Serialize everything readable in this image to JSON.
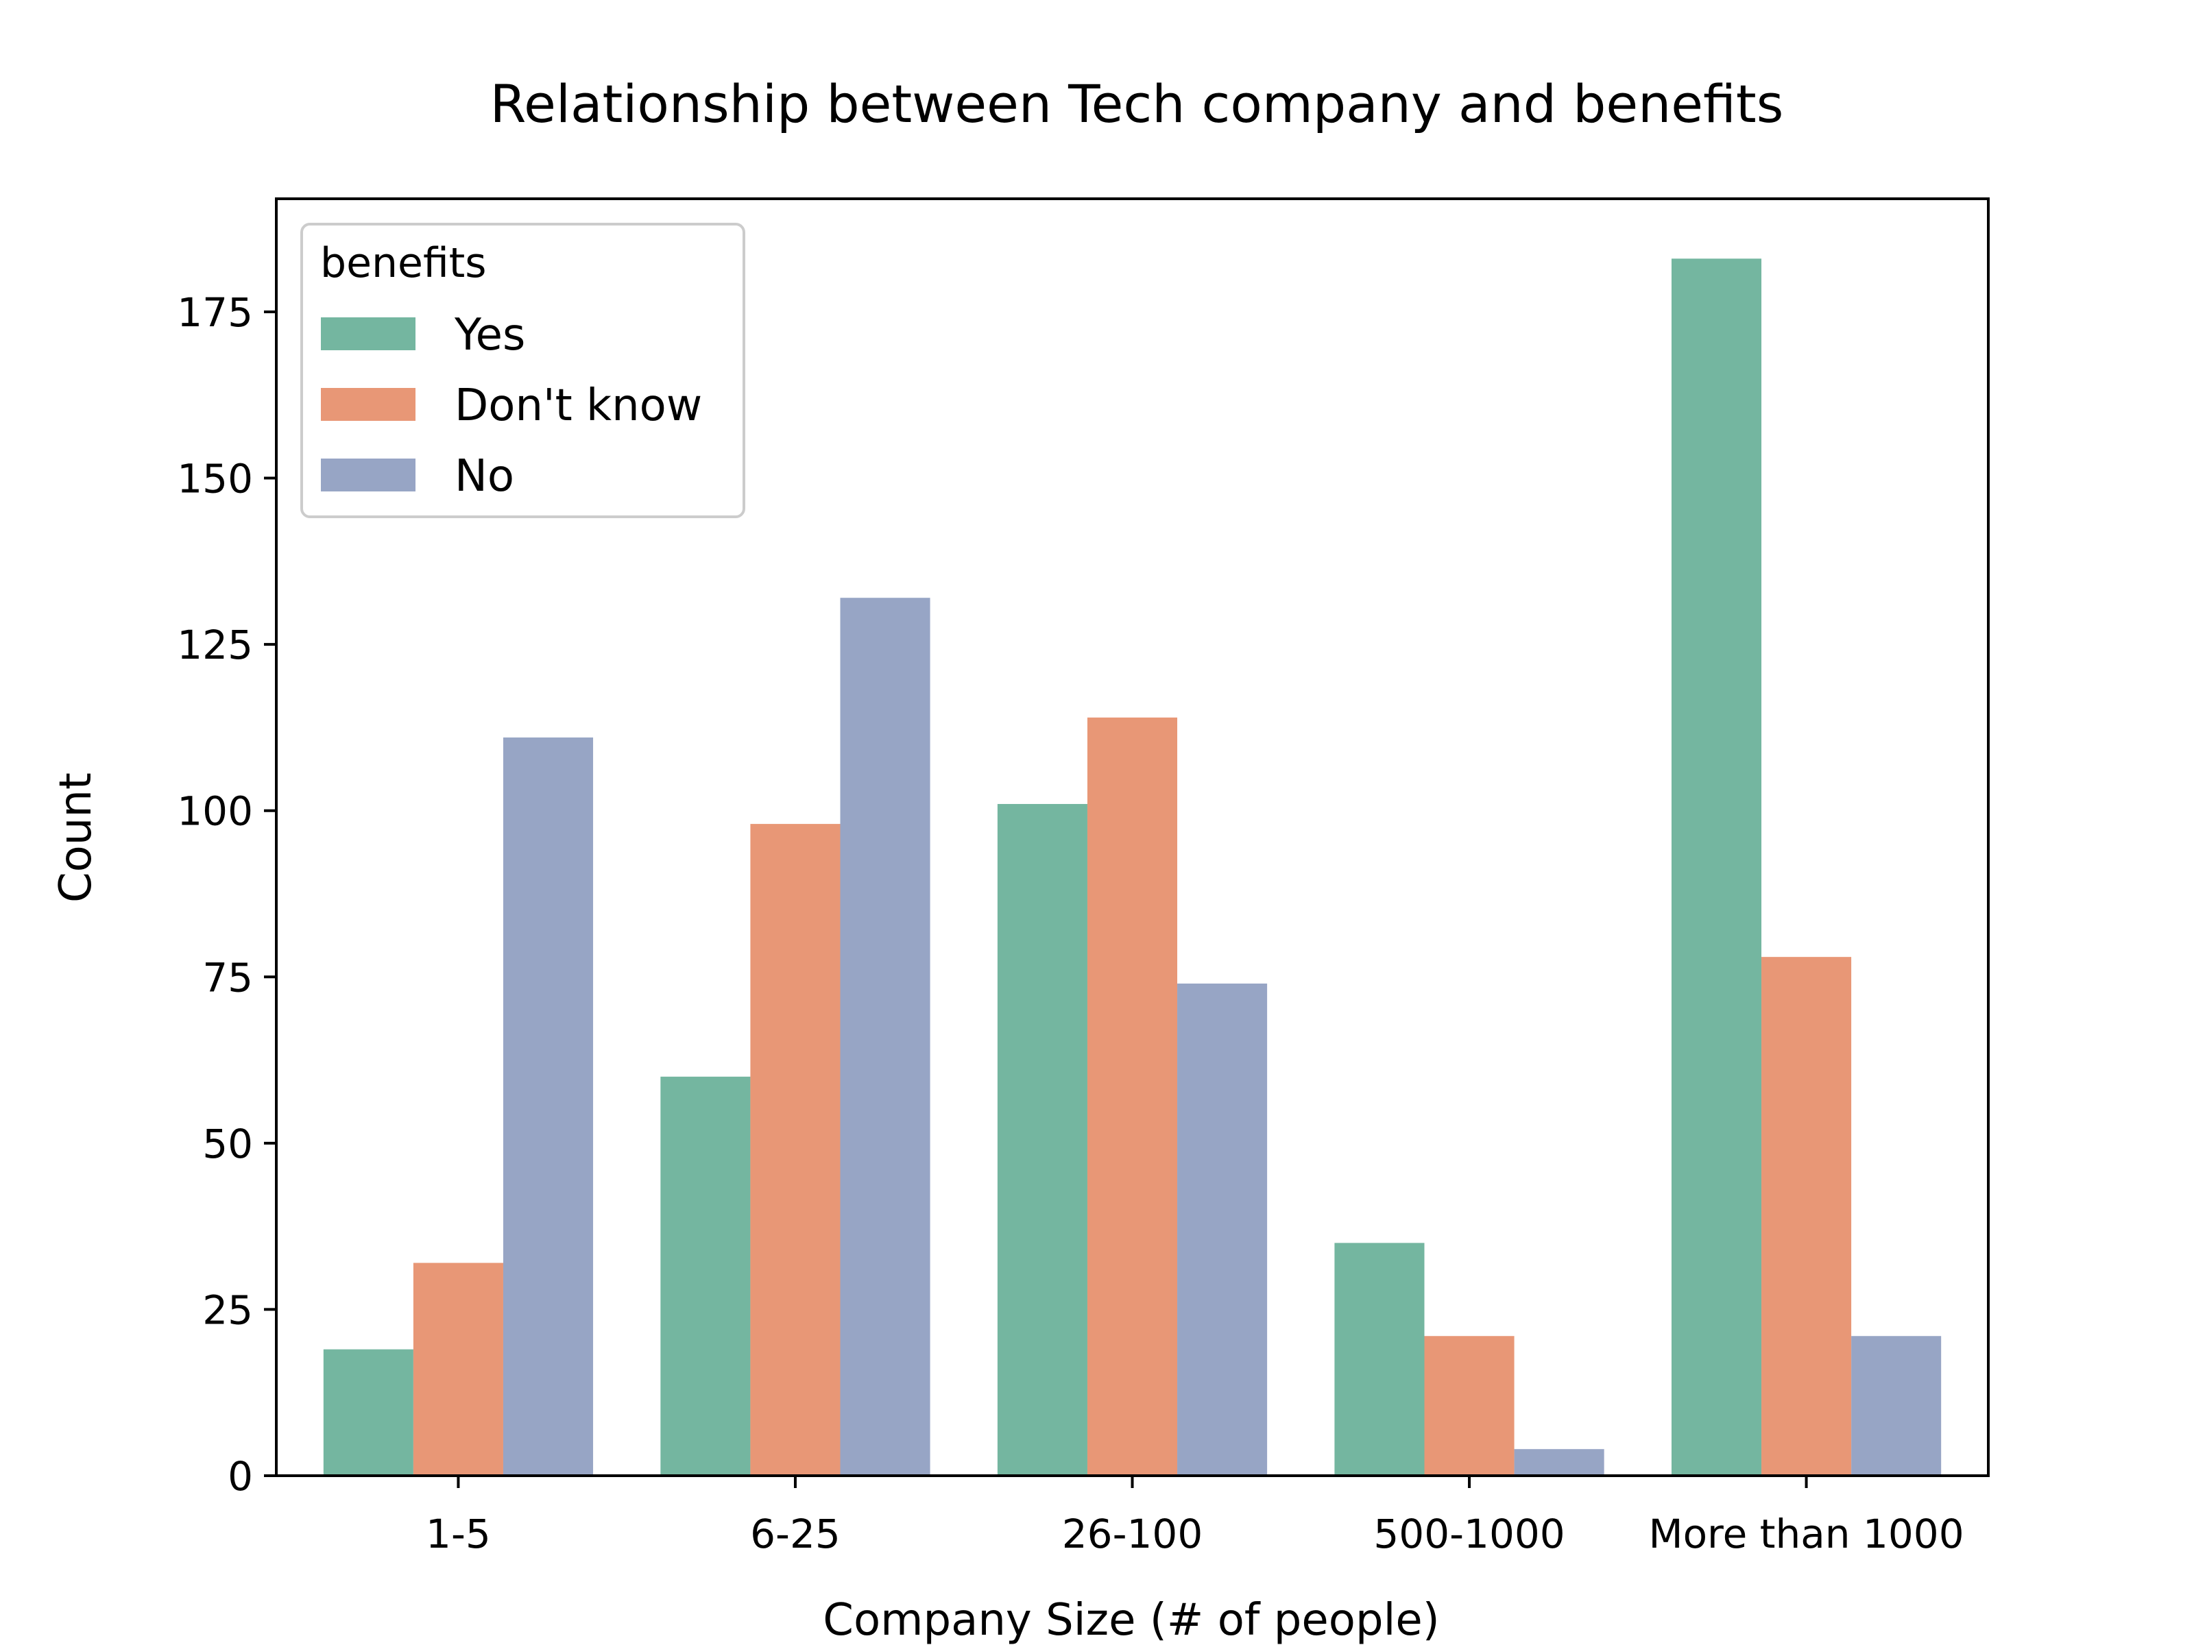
{
  "chart_data": {
    "type": "bar",
    "title": "Relationship between Tech company and benefits",
    "xlabel": "Company Size (# of people)",
    "ylabel": "Count",
    "ylim": [
      0,
      192
    ],
    "yticks": [
      0,
      25,
      50,
      75,
      100,
      125,
      150,
      175
    ],
    "categories": [
      "1-5",
      "6-25",
      "26-100",
      "500-1000",
      "More than 1000"
    ],
    "series": [
      {
        "name": "Yes",
        "color": "#74b6a0",
        "values": [
          19,
          60,
          101,
          35,
          183
        ]
      },
      {
        "name": "Don't know",
        "color": "#e89776",
        "values": [
          32,
          98,
          114,
          21,
          78
        ]
      },
      {
        "name": "No",
        "color": "#97a5c5",
        "values": [
          111,
          132,
          74,
          4,
          21
        ]
      }
    ],
    "legend": {
      "title": "benefits",
      "placement": "upper-left"
    },
    "grid": false
  }
}
